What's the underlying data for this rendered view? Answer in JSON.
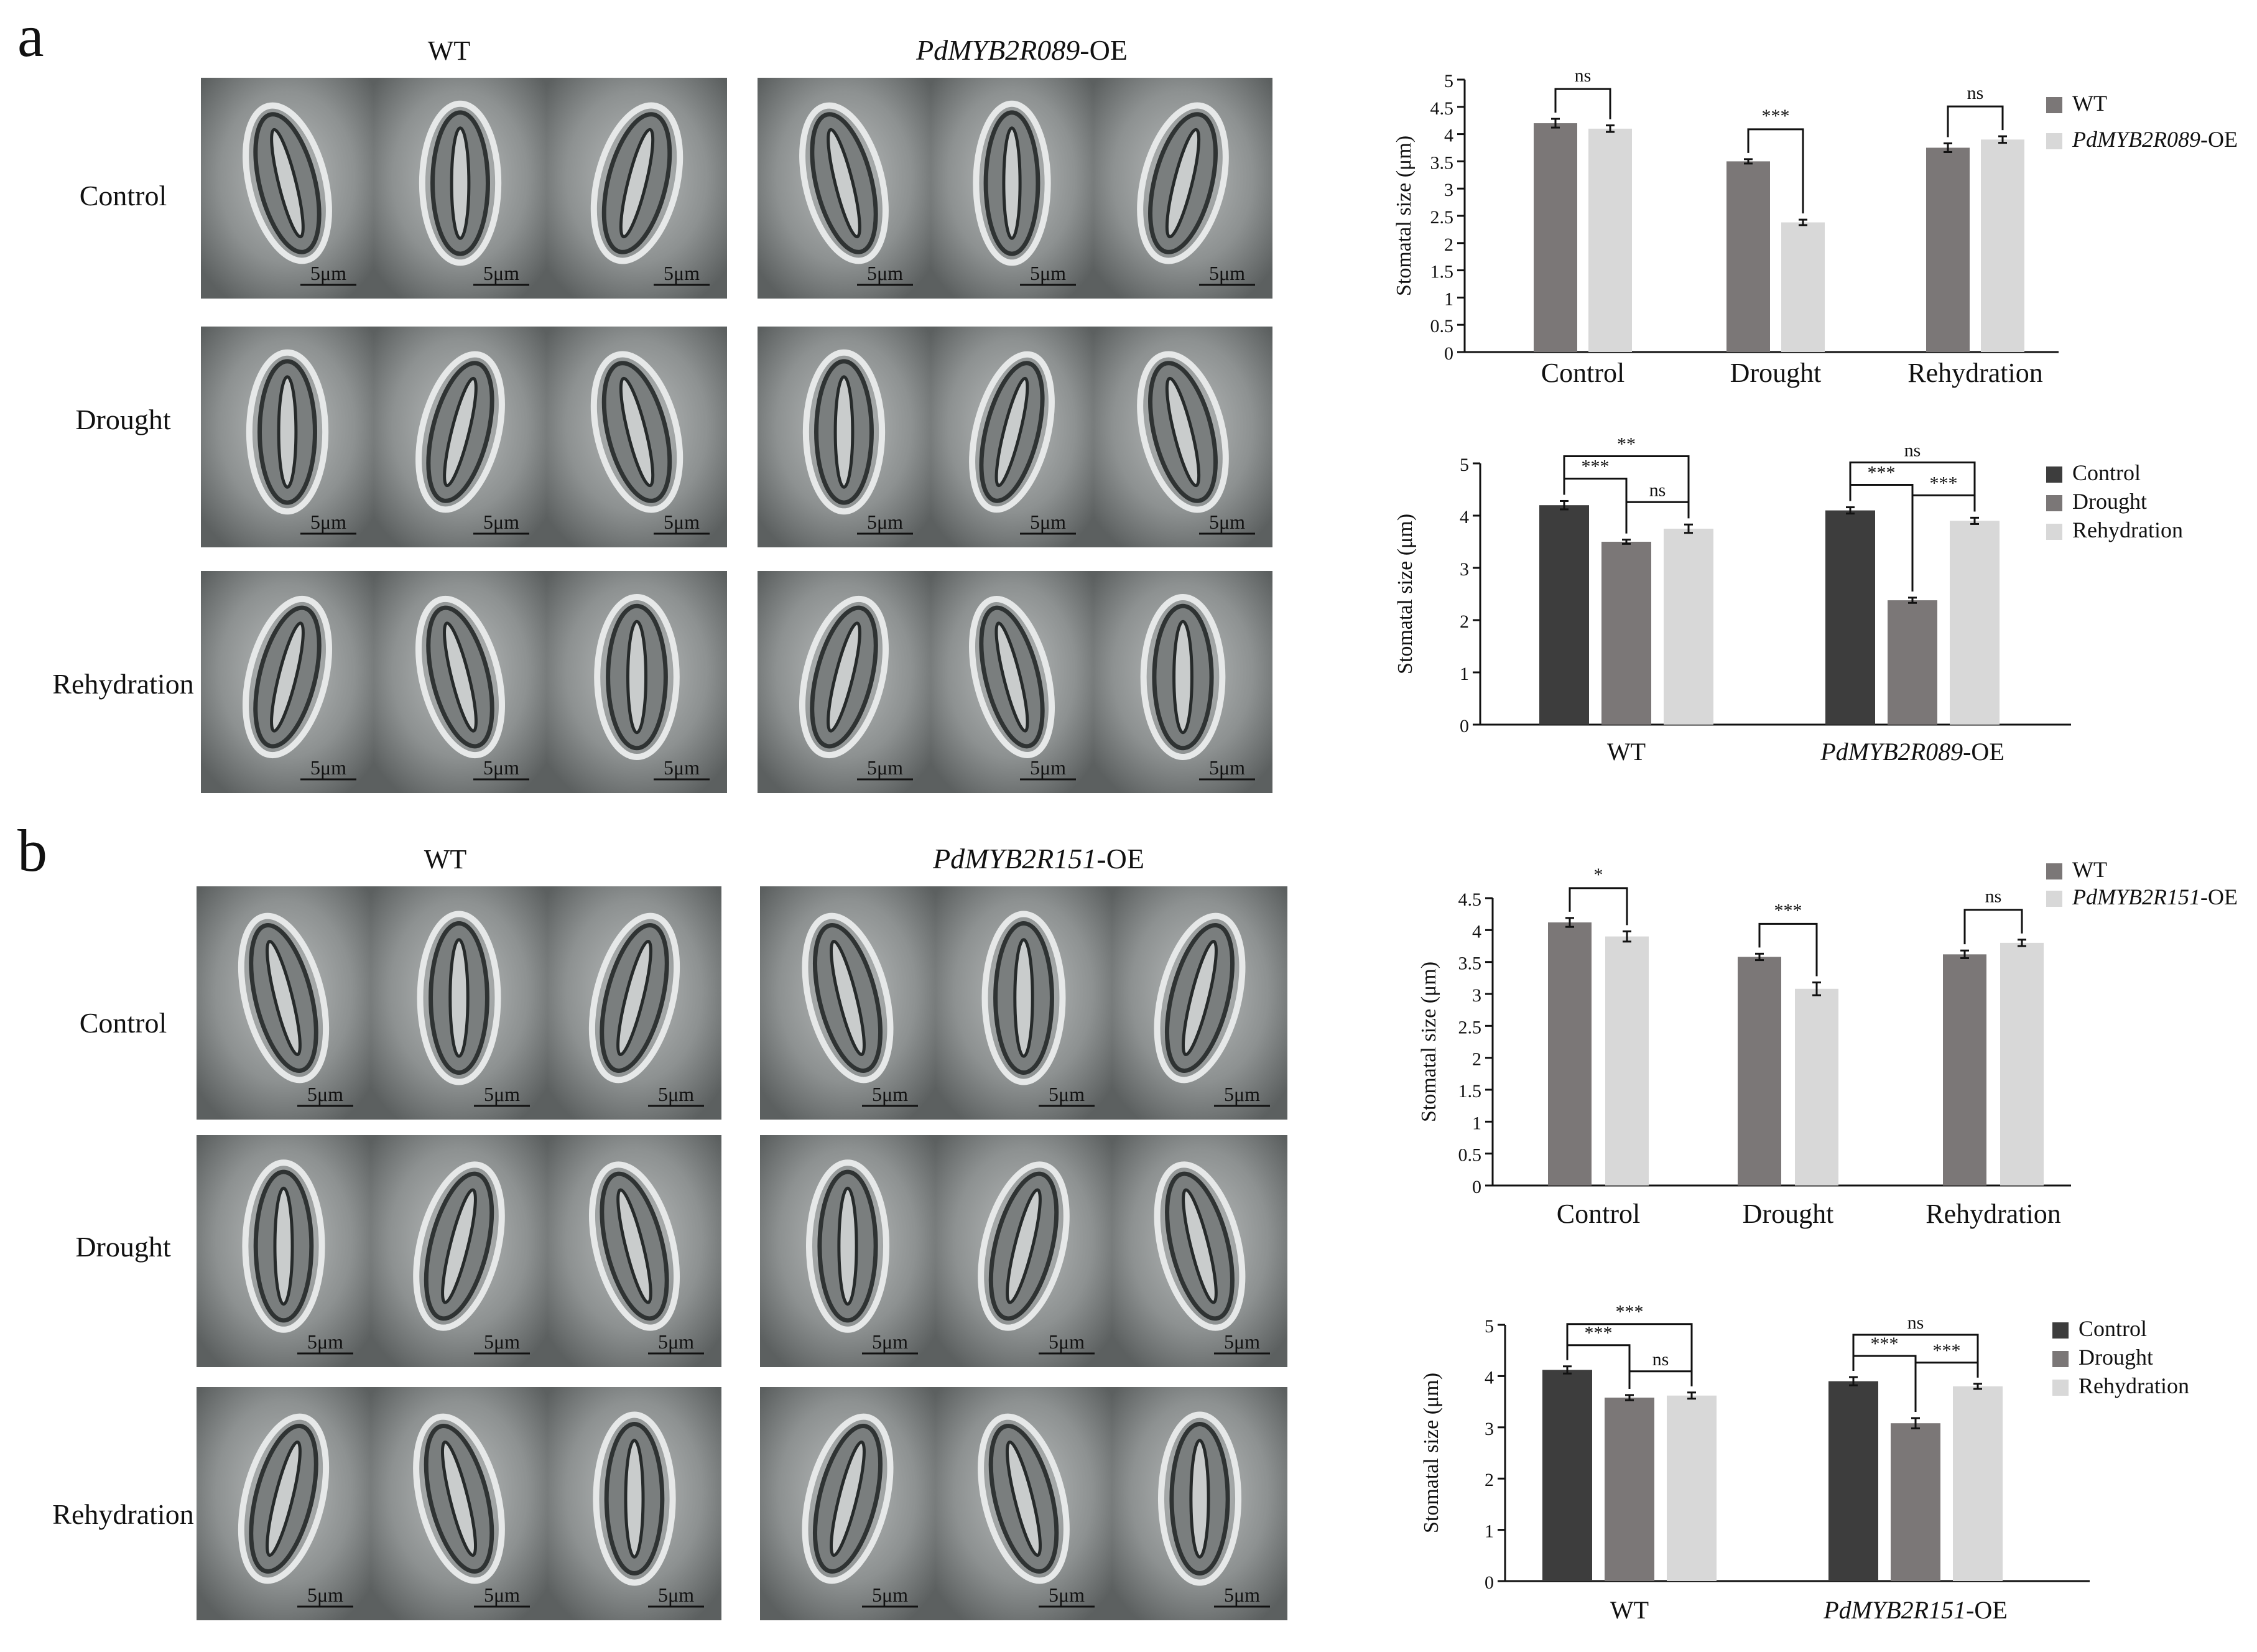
{
  "panels": {
    "a": {
      "letter": "a",
      "micrographs": {
        "wt_label": "WT",
        "oe_label_italic": "PdMYB2R089",
        "oe_label_suffix": "-OE",
        "row_labels": [
          "Control",
          "Drought",
          "Rehydration"
        ],
        "scale_bar": "5μm"
      },
      "chart_top": {
        "type": "bar",
        "ylabel": "Stomatal size (μm)",
        "categories": [
          "Control",
          "Drought",
          "Rehydration"
        ],
        "ylim": [
          0,
          5
        ],
        "yticks": [
          "0",
          "0.5",
          "1",
          "1.5",
          "2",
          "2.5",
          "3",
          "3.5",
          "4",
          "4.5",
          "5"
        ],
        "series": [
          {
            "name": "WT",
            "values": [
              4.2,
              3.5,
              3.75
            ],
            "errors": [
              0.08,
              0.04,
              0.08
            ],
            "color": "#7b7777"
          },
          {
            "name": "PdMYB2R089-OE",
            "name_italic": "PdMYB2R089",
            "name_suffix": "-OE",
            "values": [
              4.1,
              2.38,
              3.9
            ],
            "errors": [
              0.06,
              0.05,
              0.06
            ],
            "color": "#d8d8d8"
          }
        ],
        "significance": [
          "ns",
          "***",
          "ns"
        ]
      },
      "chart_bottom": {
        "type": "bar",
        "ylabel": "Stomatal size (μm)",
        "categories": [
          "WT",
          "PdMYB2R089-OE"
        ],
        "category_italic": [
          false,
          true
        ],
        "category_parts": [
          [
            "WT",
            ""
          ],
          [
            "PdMYB2R089",
            "-OE"
          ]
        ],
        "ylim": [
          0,
          5
        ],
        "yticks": [
          "0",
          "1",
          "2",
          "3",
          "4",
          "5"
        ],
        "series": [
          {
            "name": "Control",
            "values": [
              4.2,
              4.1
            ],
            "errors": [
              0.08,
              0.06
            ],
            "color": "#3d3d3d"
          },
          {
            "name": "Drought",
            "values": [
              3.5,
              2.38
            ],
            "errors": [
              0.04,
              0.05
            ],
            "color": "#7b7777"
          },
          {
            "name": "Rehydration",
            "values": [
              3.75,
              3.9
            ],
            "errors": [
              0.08,
              0.06
            ],
            "color": "#d8d8d8"
          }
        ],
        "significance": [
          [
            "***",
            "**",
            "ns"
          ],
          [
            "***",
            "ns",
            "***"
          ]
        ]
      }
    },
    "b": {
      "letter": "b",
      "micrographs": {
        "wt_label": "WT",
        "oe_label_italic": "PdMYB2R151",
        "oe_label_suffix": "-OE",
        "row_labels": [
          "Control",
          "Drought",
          "Rehydration"
        ],
        "scale_bar": "5μm"
      },
      "chart_top": {
        "type": "bar",
        "ylabel": "Stomatal size (μm)",
        "categories": [
          "Control",
          "Drought",
          "Rehydration"
        ],
        "ylim": [
          0,
          4.5
        ],
        "yticks": [
          "0",
          "0.5",
          "1",
          "1.5",
          "2",
          "2.5",
          "3",
          "3.5",
          "4",
          "4.5"
        ],
        "series": [
          {
            "name": "WT",
            "values": [
              4.12,
              3.58,
              3.62
            ],
            "errors": [
              0.07,
              0.05,
              0.06
            ],
            "color": "#7b7777"
          },
          {
            "name": "PdMYB2R151-OE",
            "name_italic": "PdMYB2R151",
            "name_suffix": "-OE",
            "values": [
              3.9,
              3.08,
              3.8
            ],
            "errors": [
              0.08,
              0.1,
              0.05
            ],
            "color": "#d8d8d8"
          }
        ],
        "significance": [
          "*",
          "***",
          "ns"
        ]
      },
      "chart_bottom": {
        "type": "bar",
        "ylabel": "Stomatal size (μm)",
        "categories": [
          "WT",
          "PdMYB2R151-OE"
        ],
        "category_italic": [
          false,
          true
        ],
        "category_parts": [
          [
            "WT",
            ""
          ],
          [
            "PdMYB2R151",
            "-OE"
          ]
        ],
        "ylim": [
          0,
          5
        ],
        "yticks": [
          "0",
          "1",
          "2",
          "3",
          "4",
          "5"
        ],
        "series": [
          {
            "name": "Control",
            "values": [
              4.12,
              3.9
            ],
            "errors": [
              0.07,
              0.08
            ],
            "color": "#3d3d3d"
          },
          {
            "name": "Drought",
            "values": [
              3.58,
              3.08
            ],
            "errors": [
              0.05,
              0.1
            ],
            "color": "#7b7777"
          },
          {
            "name": "Rehydration",
            "values": [
              3.62,
              3.8
            ],
            "errors": [
              0.06,
              0.05
            ],
            "color": "#d8d8d8"
          }
        ],
        "significance": [
          [
            "***",
            "***",
            "ns"
          ],
          [
            "***",
            "ns",
            "***"
          ]
        ]
      }
    }
  },
  "chart_data": [
    {
      "type": "bar",
      "panel": "a",
      "ylabel": "Stomatal size (μm)",
      "categories": [
        "Control",
        "Drought",
        "Rehydration"
      ],
      "ylim": [
        0,
        5
      ],
      "series": [
        {
          "name": "WT",
          "values": [
            4.2,
            3.5,
            3.75
          ]
        },
        {
          "name": "PdMYB2R089-OE",
          "values": [
            4.1,
            2.38,
            3.9
          ]
        }
      ]
    },
    {
      "type": "bar",
      "panel": "a",
      "ylabel": "Stomatal size (μm)",
      "categories": [
        "WT",
        "PdMYB2R089-OE"
      ],
      "ylim": [
        0,
        5
      ],
      "series": [
        {
          "name": "Control",
          "values": [
            4.2,
            4.1
          ]
        },
        {
          "name": "Drought",
          "values": [
            3.5,
            2.38
          ]
        },
        {
          "name": "Rehydration",
          "values": [
            3.75,
            3.9
          ]
        }
      ]
    },
    {
      "type": "bar",
      "panel": "b",
      "ylabel": "Stomatal size (μm)",
      "categories": [
        "Control",
        "Drought",
        "Rehydration"
      ],
      "ylim": [
        0,
        4.5
      ],
      "series": [
        {
          "name": "WT",
          "values": [
            4.12,
            3.58,
            3.62
          ]
        },
        {
          "name": "PdMYB2R151-OE",
          "values": [
            3.9,
            3.08,
            3.8
          ]
        }
      ]
    },
    {
      "type": "bar",
      "panel": "b",
      "ylabel": "Stomatal size (μm)",
      "categories": [
        "WT",
        "PdMYB2R151-OE"
      ],
      "ylim": [
        0,
        5
      ],
      "series": [
        {
          "name": "Control",
          "values": [
            4.12,
            3.9
          ]
        },
        {
          "name": "Drought",
          "values": [
            3.58,
            3.08
          ]
        },
        {
          "name": "Rehydration",
          "values": [
            3.62,
            3.8
          ]
        }
      ]
    }
  ]
}
